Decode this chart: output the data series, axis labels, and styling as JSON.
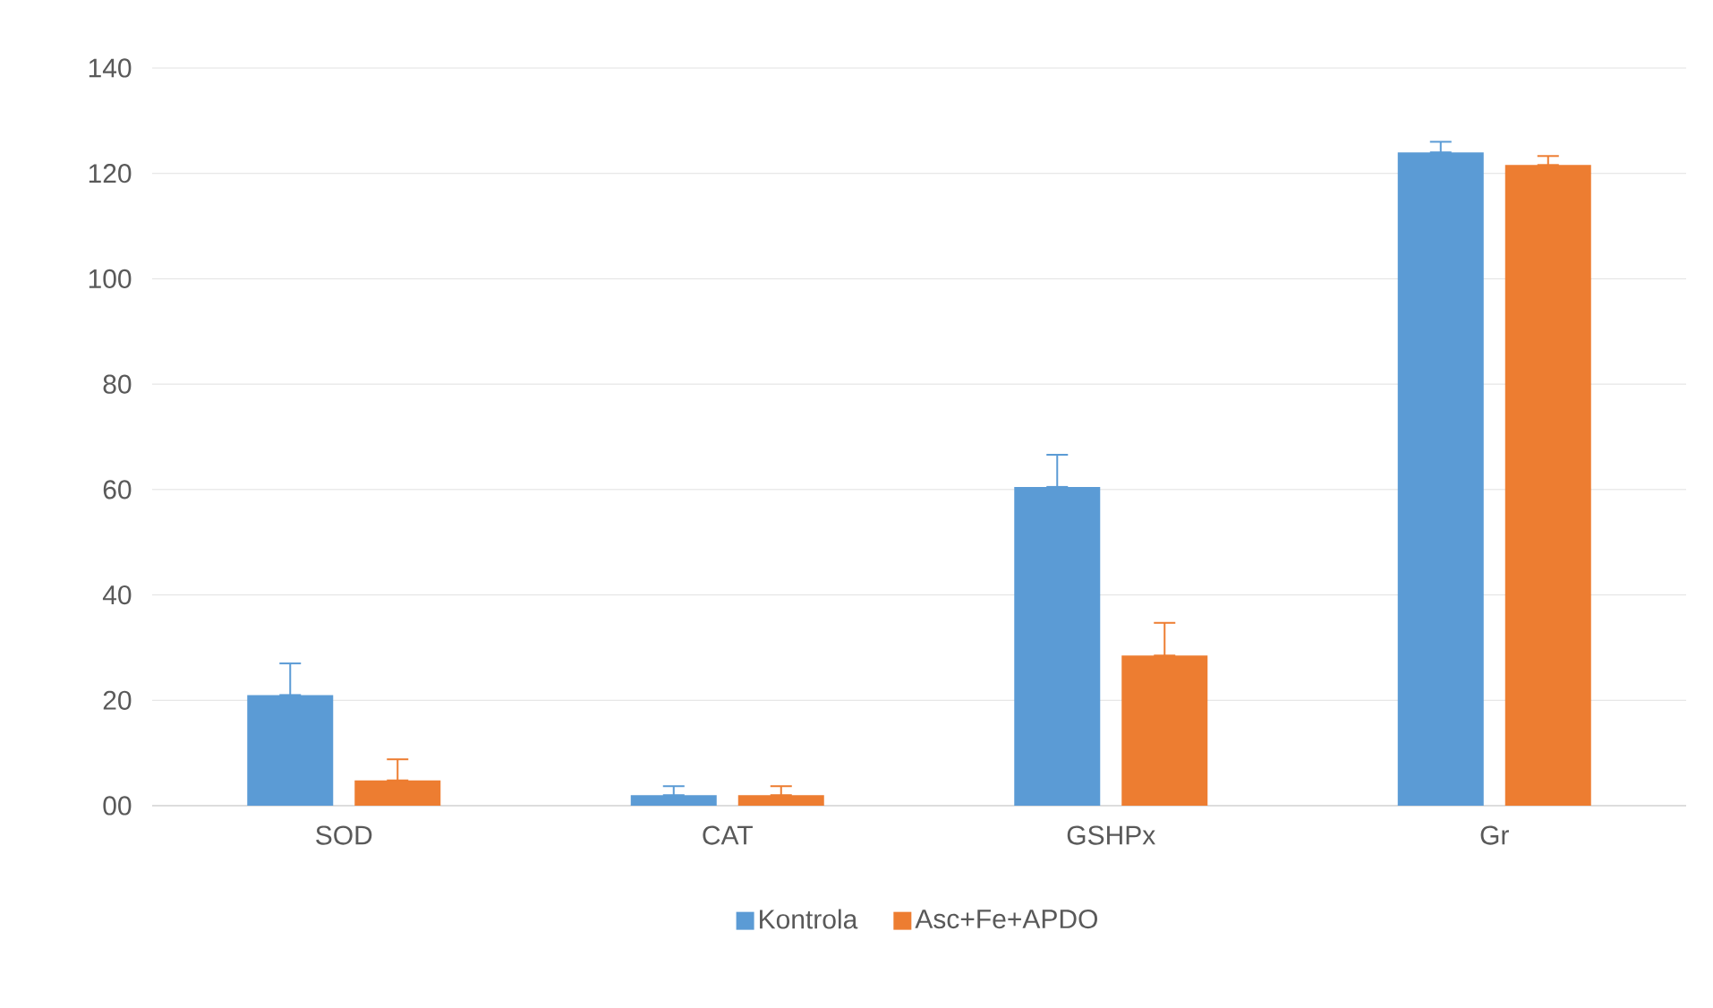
{
  "chart_data": {
    "type": "bar",
    "categories": [
      "SOD",
      "CAT",
      "GSHPx",
      "Gr"
    ],
    "series": [
      {
        "name": "Kontrola",
        "color": "#5b9bd5",
        "values": [
          21,
          2,
          60.5,
          124
        ],
        "errors": [
          [
            21,
            27
          ],
          [
            2,
            3.7
          ],
          [
            60.5,
            66.6
          ],
          [
            124,
            126
          ]
        ]
      },
      {
        "name": "Asc+Fe+APDO",
        "color": "#ed7d31",
        "values": [
          4.8,
          2,
          28.5,
          121.6
        ],
        "errors": [
          [
            4.8,
            8.8
          ],
          [
            2,
            3.7
          ],
          [
            28.5,
            34.7
          ],
          [
            121.6,
            123.3
          ]
        ]
      }
    ],
    "ylim": [
      0,
      140
    ],
    "yticks": [
      {
        "value": 0,
        "label": "00"
      },
      20,
      40,
      60,
      80,
      100,
      120,
      140
    ],
    "grid": "y",
    "legend": "bottom"
  }
}
